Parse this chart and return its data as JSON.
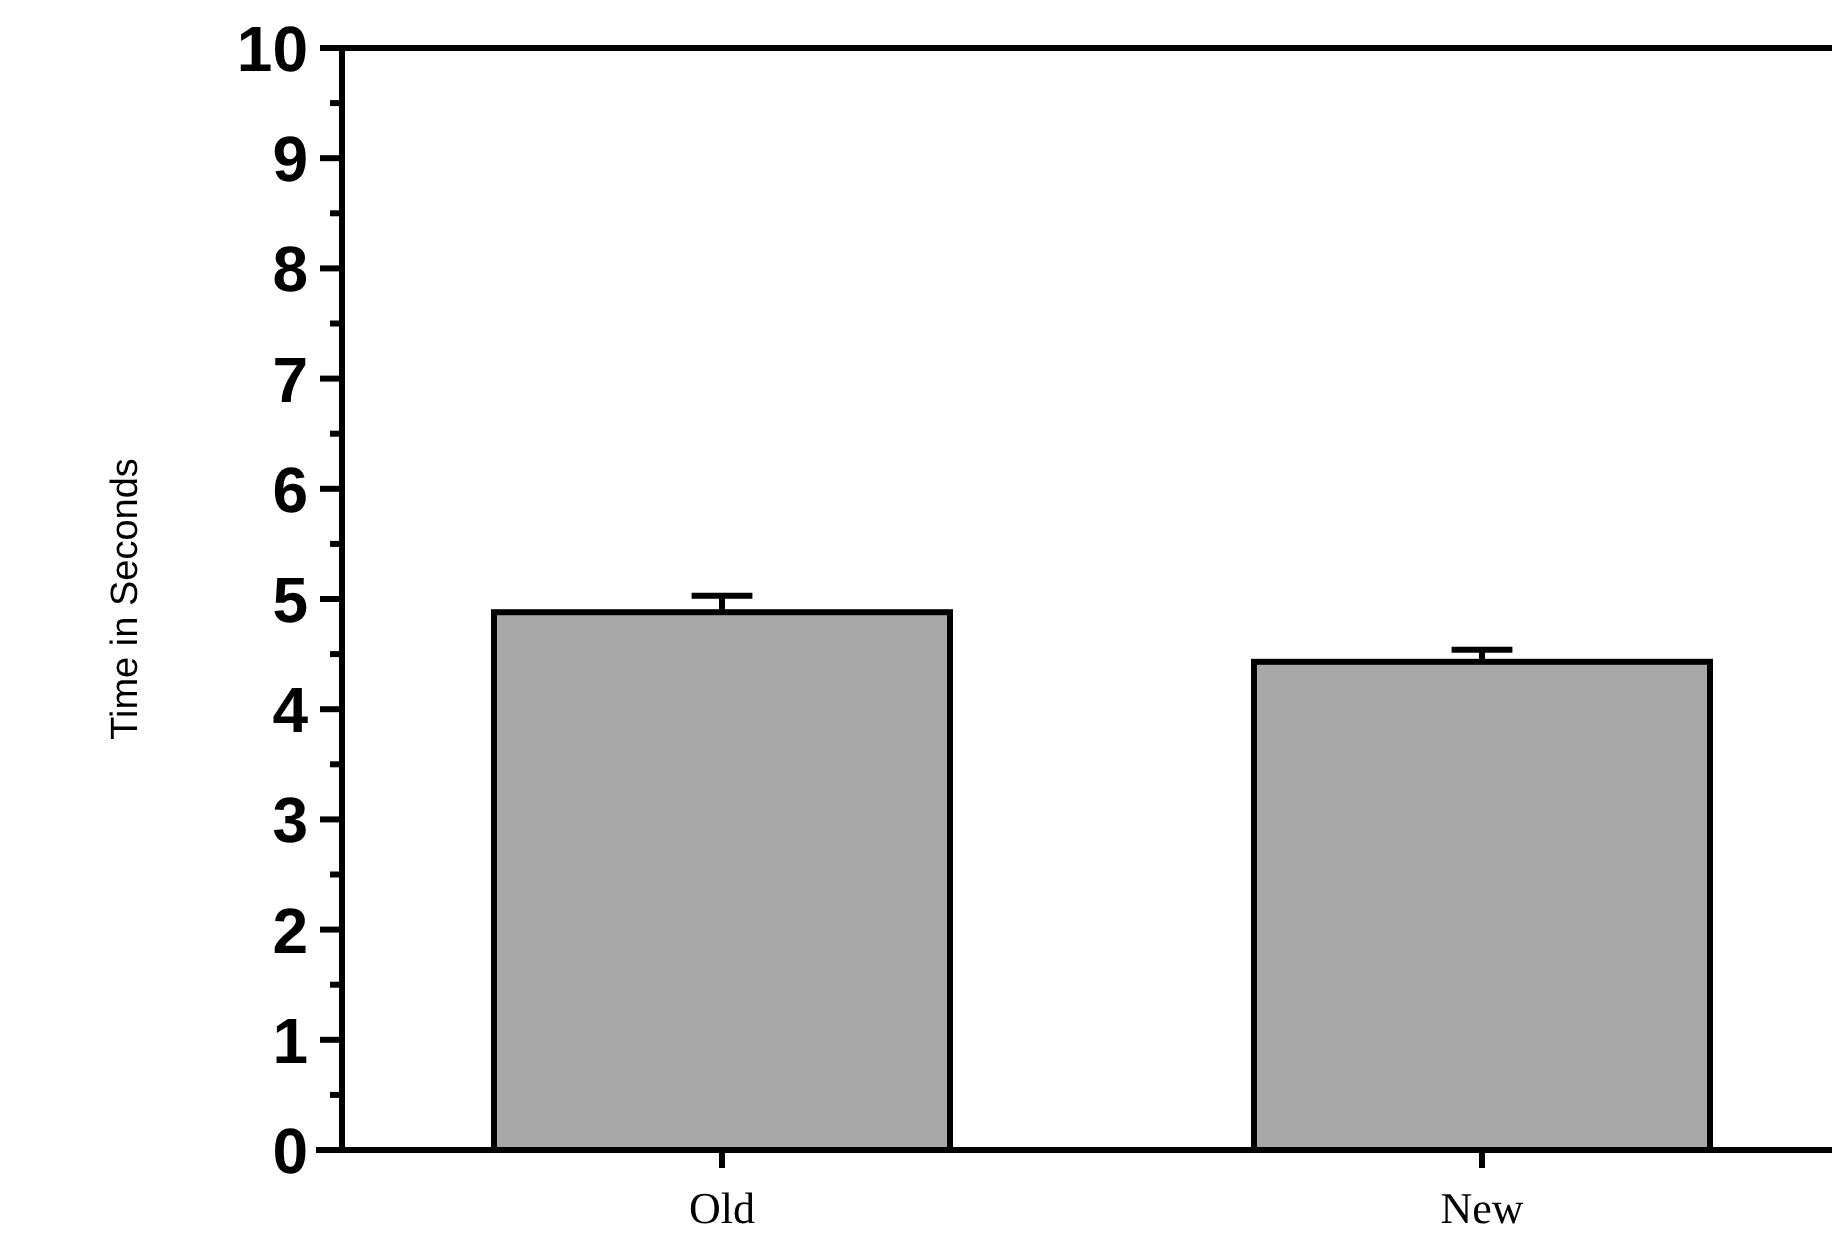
{
  "chart_data": {
    "type": "bar",
    "ylabel": "Time in Seconds",
    "categories": [
      "Old",
      "New"
    ],
    "values": [
      4.88,
      4.43
    ],
    "errors": [
      [
        4.88,
        5.03
      ],
      [
        4.43,
        4.54
      ]
    ],
    "color": "#a8a8a8",
    "ylim": [
      0,
      10
    ],
    "yticks": [
      0,
      {
        "value": 0.5,
        "label": null
      },
      1,
      {
        "value": 1.5,
        "label": null
      },
      2,
      {
        "value": 2.5,
        "label": null
      },
      3,
      {
        "value": 3.5,
        "label": null
      },
      4,
      {
        "value": 4.5,
        "label": null
      },
      5,
      {
        "value": 5.5,
        "label": null
      },
      6,
      {
        "value": 6.5,
        "label": null
      },
      7,
      {
        "value": 7.5,
        "label": null
      },
      8,
      {
        "value": 8.5,
        "label": null
      },
      9,
      {
        "value": 9.5,
        "label": null
      },
      10
    ]
  }
}
